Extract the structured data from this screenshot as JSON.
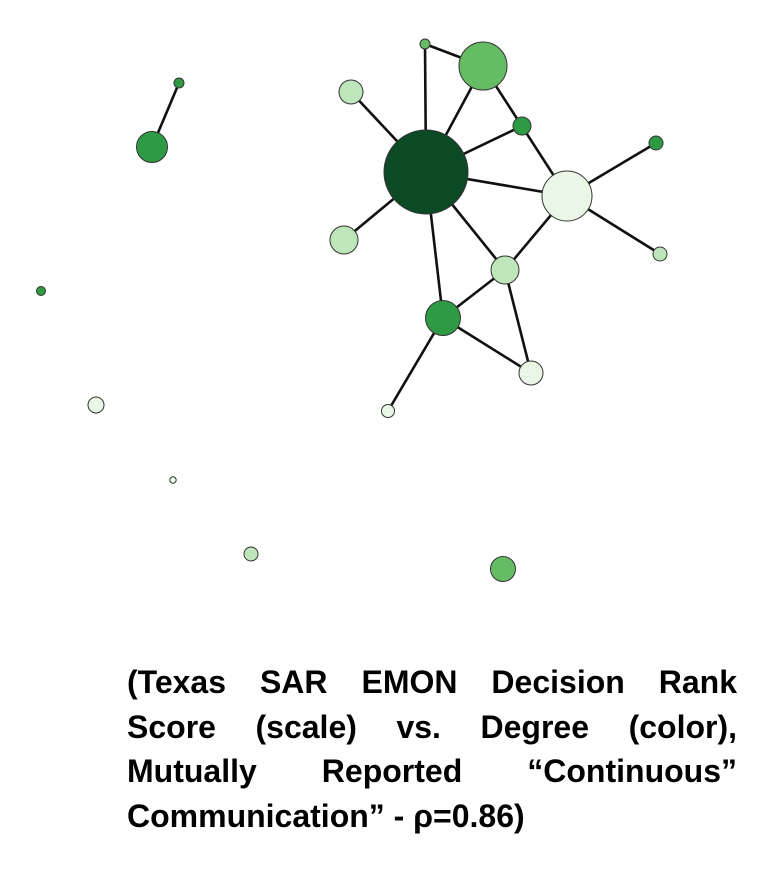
{
  "caption": {
    "lines": [
      "(Texas SAR EMON Decision Rank",
      "Score (scale) vs. Degree (color),",
      "Mutually Reported “Continuous”",
      "Communication” - ρ=0.86)"
    ]
  },
  "colors": {
    "degree_high": "#0b4a25",
    "degree_mid_high": "#2e9a44",
    "degree_mid": "#66bb65",
    "degree_low": "#bfe5bb",
    "degree_lowest": "#eaf7e6",
    "edge": "#111111"
  }
}
